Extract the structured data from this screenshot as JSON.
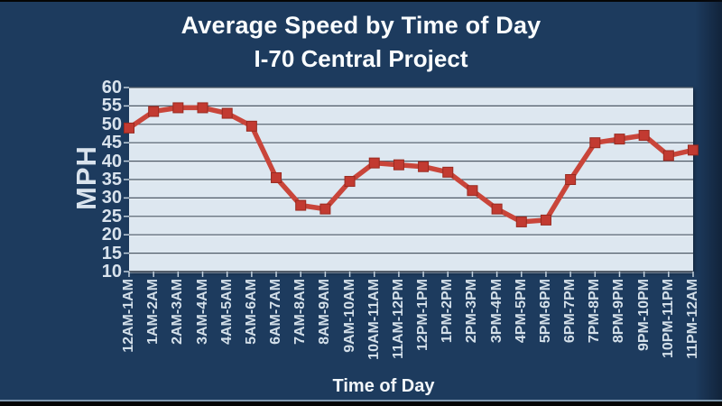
{
  "chart_data": {
    "type": "line",
    "title": "Average Speed by Time of Day",
    "subtitle": "I-70 Central Project",
    "xlabel": "Time of Day",
    "ylabel": "MPH",
    "ylim": [
      10,
      60
    ],
    "ytick_step": 5,
    "grid": true,
    "legend": "none",
    "marker": "square",
    "categories": [
      "12AM-1AM",
      "1AM-2AM",
      "2AM-3AM",
      "3AM-4AM",
      "4AM-5AM",
      "5AM-6AM",
      "6AM-7AM",
      "7AM-8AM",
      "8AM-9AM",
      "9AM-10AM",
      "10AM-11AM",
      "11AM-12PM",
      "12PM-1PM",
      "1PM-2PM",
      "2PM-3PM",
      "3PM-4PM",
      "4PM-5PM",
      "5PM-6PM",
      "6PM-7PM",
      "7PM-8PM",
      "8PM-9PM",
      "9PM-10PM",
      "10PM-11PM",
      "11PM-12AM"
    ],
    "values": [
      49,
      53.5,
      54.5,
      54.5,
      53,
      49.5,
      35.5,
      28,
      27,
      34.5,
      39.5,
      39,
      38.5,
      37,
      32,
      27,
      23.5,
      24,
      35,
      45,
      46,
      47,
      41.5,
      43
    ]
  },
  "colors": {
    "background": "#1d3b5e",
    "plot_background": "#dde7f0",
    "line": "#c9453a",
    "marker_fill": "#c23a31",
    "marker_stroke": "#98291f",
    "gridline": "#4d5966",
    "gridline_highlight": "#f3f8fc",
    "tick": "#c3d1dd",
    "axis_text": "#d9e3ed",
    "title_text": "#fafdff"
  }
}
